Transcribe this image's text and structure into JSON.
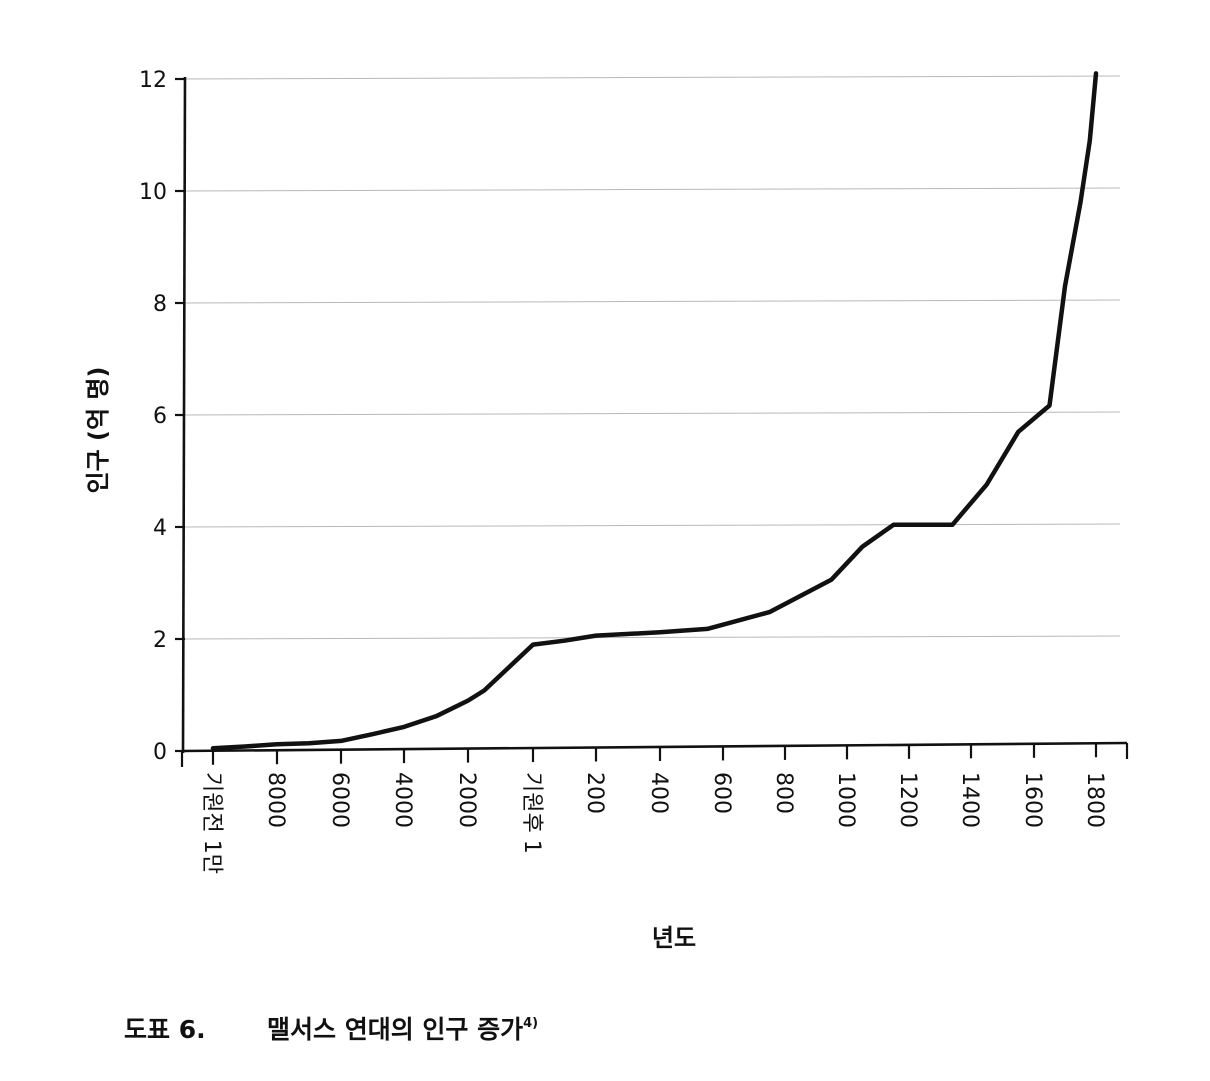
{
  "chart_data": {
    "type": "line",
    "ylabel": "인구 (억 명)",
    "xlabel": "년도",
    "ylim": [
      0,
      12
    ],
    "y_ticks": [
      "0",
      "2",
      "4",
      "6",
      "8",
      "10",
      "12"
    ],
    "categories": [
      "기원전 1만",
      "8000",
      "6000",
      "4000",
      "2000",
      "기원후 1",
      "200",
      "400",
      "600",
      "800",
      "1000",
      "1200",
      "1400",
      "1600",
      "1800"
    ],
    "grid": true,
    "legend": "none",
    "series": [
      {
        "color": "#111111",
        "points": [
          {
            "x": "기원전 10000",
            "y": 0.05
          },
          {
            "x": "기원전 9000",
            "y": 0.08
          },
          {
            "x": "기원전 8000",
            "y": 0.12
          },
          {
            "x": "기원전 7000",
            "y": 0.14
          },
          {
            "x": "기원전 6000",
            "y": 0.18
          },
          {
            "x": "기원전 5000",
            "y": 0.3
          },
          {
            "x": "기원전 4000",
            "y": 0.43
          },
          {
            "x": "기원전 3000",
            "y": 0.62
          },
          {
            "x": "기원전 2000",
            "y": 0.9
          },
          {
            "x": "기원전 1500",
            "y": 1.08
          },
          {
            "x": "기원후 1",
            "y": 1.9
          },
          {
            "x": "100",
            "y": 1.97
          },
          {
            "x": "200",
            "y": 2.06
          },
          {
            "x": "400",
            "y": 2.12
          },
          {
            "x": "550",
            "y": 2.18
          },
          {
            "x": "750",
            "y": 2.48
          },
          {
            "x": "950",
            "y": 3.06
          },
          {
            "x": "1050",
            "y": 3.65
          },
          {
            "x": "1150",
            "y": 4.04
          },
          {
            "x": "1340",
            "y": 4.04
          },
          {
            "x": "1450",
            "y": 4.76
          },
          {
            "x": "1550",
            "y": 5.7
          },
          {
            "x": "1650",
            "y": 6.17
          },
          {
            "x": "1700",
            "y": 8.3
          },
          {
            "x": "1750",
            "y": 9.8
          },
          {
            "x": "1780",
            "y": 10.9
          },
          {
            "x": "1800",
            "y": 12.1
          }
        ]
      }
    ]
  },
  "caption": {
    "number": "도표 6.",
    "title": "맬서스 연대의 인구 증가",
    "note": "4)"
  }
}
